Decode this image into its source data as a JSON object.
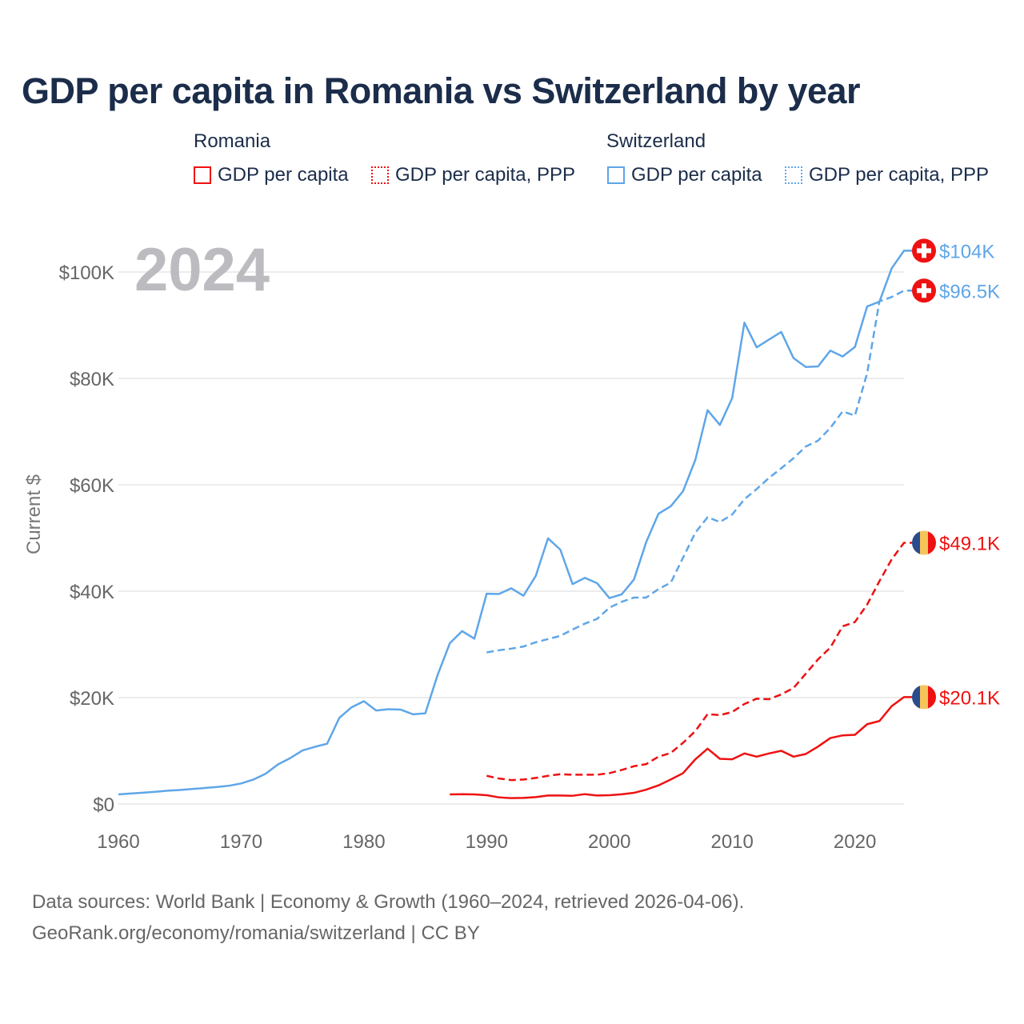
{
  "title": "GDP per capita in Romania vs Switzerland by year",
  "legend": {
    "groups": [
      {
        "country": "Romania",
        "color": "#ee1111",
        "items": [
          "GDP per capita",
          "GDP per capita, PPP"
        ]
      },
      {
        "country": "Switzerland",
        "color": "#5fa6e8",
        "items": [
          "GDP per capita",
          "GDP per capita, PPP"
        ]
      }
    ]
  },
  "year_label": "2024",
  "source_lines": [
    "Data sources: World Bank | Economy & Growth (1960–2024, retrieved 2026-04-06).",
    "GeoRank.org/economy/romania/switzerland | CC BY"
  ],
  "chart_data": {
    "type": "line",
    "title": "GDP per capita in Romania vs Switzerland by year",
    "xlabel": "",
    "ylabel": "Current $",
    "xlim": [
      1960,
      2024
    ],
    "ylim": [
      0,
      100000
    ],
    "x_ticks": [
      1960,
      1970,
      1980,
      1990,
      2000,
      2010,
      2020
    ],
    "x_tick_labels": [
      "1960",
      "1970",
      "1980",
      "1990",
      "2000",
      "2010",
      "2020"
    ],
    "y_ticks": [
      0,
      20000,
      40000,
      60000,
      80000,
      100000
    ],
    "y_tick_labels": [
      "$0",
      "$20K",
      "$40K",
      "$60K",
      "$80K",
      "$100K"
    ],
    "grid": true,
    "legend_position": "top",
    "series": [
      {
        "name": "Switzerland GDP per capita",
        "country": "Switzerland",
        "color": "#5fa6e8",
        "dashed": false,
        "end_label": "$104K",
        "start": 1960,
        "values": [
          1800,
          1970,
          2130,
          2300,
          2500,
          2640,
          2820,
          3000,
          3190,
          3430,
          3860,
          4590,
          5700,
          7450,
          8630,
          10060,
          10750,
          11320,
          16200,
          18180,
          19330,
          17580,
          17820,
          17740,
          16860,
          17040,
          24220,
          30220,
          32500,
          31080,
          39530,
          39480,
          40550,
          39150,
          42870,
          49940,
          47820,
          41340,
          42510,
          41500,
          38710,
          39400,
          42190,
          49240,
          54560,
          55970,
          58800,
          64680,
          74030,
          71250,
          76280,
          90480,
          85840,
          87310,
          88730,
          83810,
          82150,
          82250,
          85220,
          84120,
          85900,
          93530,
          94430,
          100700,
          104000
        ]
      },
      {
        "name": "Switzerland GDP per capita, PPP",
        "country": "Switzerland",
        "color": "#5fa6e8",
        "dashed": true,
        "end_label": "$96.5K",
        "start": 1990,
        "values": [
          28500,
          28900,
          29200,
          29600,
          30400,
          31000,
          31600,
          32800,
          33900,
          34800,
          36900,
          38000,
          38800,
          38800,
          40400,
          41600,
          46300,
          51000,
          53900,
          53000,
          54400,
          57300,
          59200,
          61300,
          63100,
          65000,
          67200,
          68300,
          70700,
          73800,
          73000,
          81000,
          94500,
          95300,
          96500
        ]
      },
      {
        "name": "Romania GDP per capita, PPP",
        "country": "Romania",
        "color": "#ee1111",
        "dashed": true,
        "end_label": "$49.1K",
        "start": 1990,
        "values": [
          5300,
          4800,
          4500,
          4600,
          4900,
          5300,
          5600,
          5500,
          5500,
          5500,
          5800,
          6400,
          7100,
          7500,
          8900,
          9600,
          11500,
          13700,
          16900,
          16700,
          17300,
          18800,
          19800,
          19700,
          20600,
          21800,
          24500,
          27200,
          29400,
          33400,
          34200,
          37500,
          41900,
          46000,
          49100
        ]
      },
      {
        "name": "Romania GDP per capita",
        "country": "Romania",
        "color": "#ee1111",
        "dashed": false,
        "end_label": "$20.1K",
        "start": 1987,
        "values": [
          1800,
          1850,
          1800,
          1650,
          1250,
          1100,
          1150,
          1300,
          1600,
          1600,
          1550,
          1850,
          1600,
          1650,
          1830,
          2100,
          2700,
          3500,
          4600,
          5800,
          8400,
          10400,
          8500,
          8400,
          9500,
          8900,
          9500,
          10000,
          8900,
          9400,
          10800,
          12400,
          12900,
          13000,
          15000,
          15600,
          18400,
          20100
        ]
      }
    ]
  }
}
